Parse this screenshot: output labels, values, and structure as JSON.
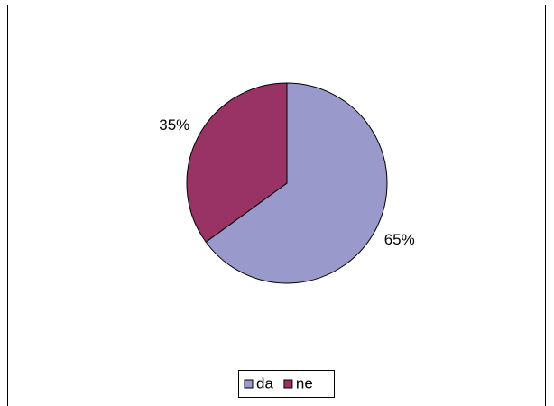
{
  "chart_data": {
    "type": "pie",
    "categories": [
      "da",
      "ne"
    ],
    "values": [
      65,
      35
    ],
    "value_labels": [
      "65%",
      "35%"
    ],
    "colors": [
      "#9999cc",
      "#993366"
    ],
    "legend": "bottom"
  }
}
